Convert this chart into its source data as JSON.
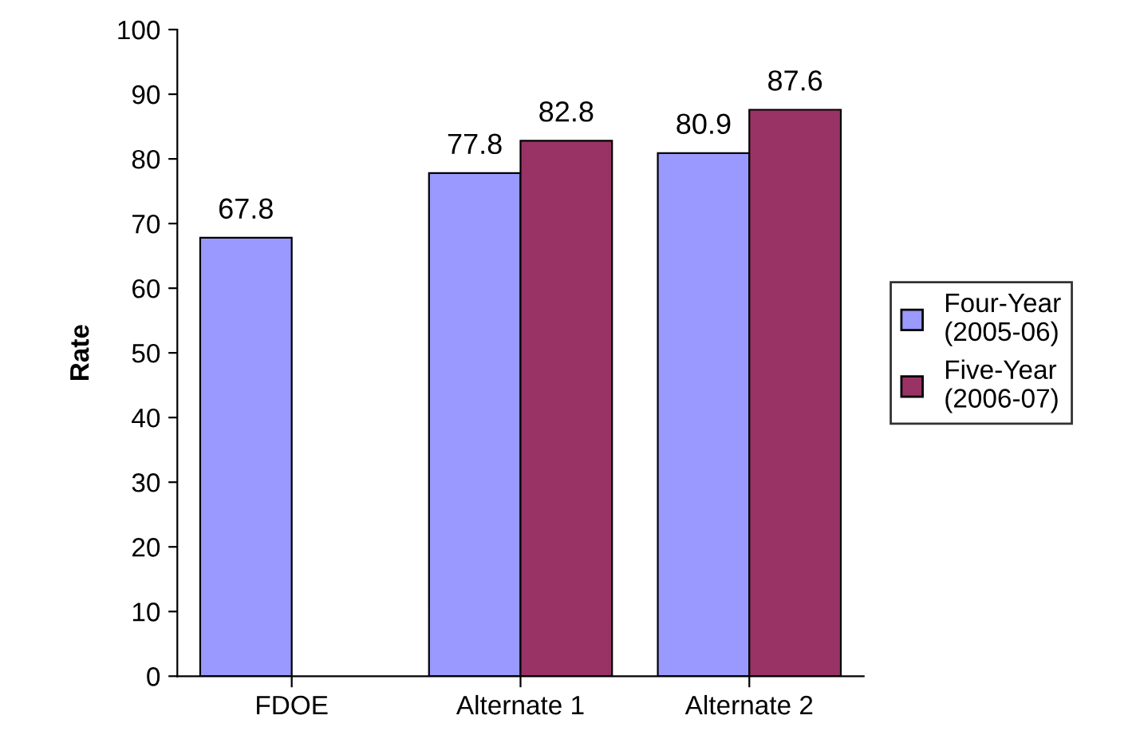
{
  "chart_data": {
    "type": "bar",
    "ylabel": "Rate",
    "categories": [
      "FDOE",
      "Alternate 1",
      "Alternate 2"
    ],
    "series": [
      {
        "name": "Four-Year\n(2005-06)",
        "color": "#9999ff",
        "values": [
          67.8,
          77.8,
          80.9
        ]
      },
      {
        "name": "Five-Year\n(2006-07)",
        "color": "#993366",
        "values": [
          null,
          82.8,
          87.6
        ]
      }
    ],
    "ylim": [
      0,
      100
    ],
    "yticks": [
      0,
      10,
      20,
      30,
      40,
      50,
      60,
      70,
      80,
      90,
      100
    ],
    "data_labels": true,
    "legend": "right",
    "grid": false
  }
}
